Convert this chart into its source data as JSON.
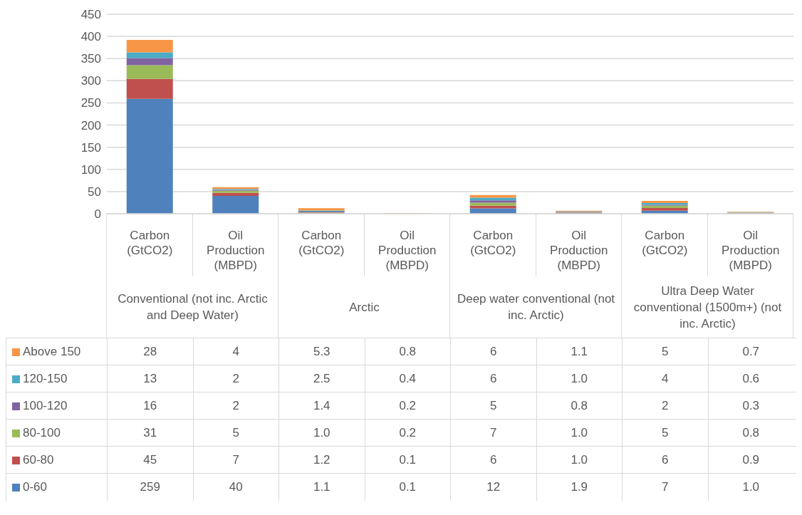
{
  "chart_data": {
    "type": "bar",
    "stacked": true,
    "categories": [
      "Carbon (GtCO2)",
      "Oil Production (MBPD)",
      "Carbon (GtCO2)",
      "Oil Production (MBPD)",
      "Carbon (GtCO2)",
      "Oil Production (MBPD)",
      "Carbon (GtCO2)",
      "Oil Production (MBPD)"
    ],
    "annotations": [
      "Conventional (not inc. Arctic and Deep Water)",
      "Arctic",
      "Deep water conventional (not inc. Arctic)",
      "Ultra Deep Water conventional (1500m+) (not inc. Arctic)"
    ],
    "series": [
      {
        "name": "0-60",
        "color": "#4f81bd",
        "values": [
          259,
          40,
          1.1,
          0.1,
          12,
          1.9,
          7,
          1.0
        ],
        "value_labels": [
          "259",
          "40",
          "1.1",
          "0.1",
          "12",
          "1.9",
          "7",
          "1.0"
        ]
      },
      {
        "name": "60-80",
        "color": "#c0504d",
        "values": [
          45,
          7,
          1.2,
          0.1,
          6,
          1.0,
          6,
          0.9
        ],
        "value_labels": [
          "45",
          "7",
          "1.2",
          "0.1",
          "6",
          "1.0",
          "6",
          "0.9"
        ]
      },
      {
        "name": "80-100",
        "color": "#9bbb59",
        "values": [
          31,
          5,
          1.0,
          0.2,
          7,
          1.0,
          5,
          0.8
        ],
        "value_labels": [
          "31",
          "5",
          "1.0",
          "0.2",
          "7",
          "1.0",
          "5",
          "0.8"
        ]
      },
      {
        "name": "100-120",
        "color": "#8064a2",
        "values": [
          16,
          2,
          1.4,
          0.2,
          5,
          0.8,
          2,
          0.3
        ],
        "value_labels": [
          "16",
          "2",
          "1.4",
          "0.2",
          "5",
          "0.8",
          "2",
          "0.3"
        ]
      },
      {
        "name": "120-150",
        "color": "#4bacc6",
        "values": [
          13,
          2,
          2.5,
          0.4,
          6,
          1.0,
          4,
          0.6
        ],
        "value_labels": [
          "13",
          "2",
          "2.5",
          "0.4",
          "6",
          "1.0",
          "4",
          "0.6"
        ]
      },
      {
        "name": "Above 150",
        "color": "#f79646",
        "values": [
          28,
          4,
          5.3,
          0.8,
          6,
          1.1,
          5,
          0.7
        ],
        "value_labels": [
          "28",
          "4",
          "5.3",
          "0.8",
          "6",
          "1.1",
          "5",
          "0.7"
        ]
      }
    ],
    "ylim": [
      0,
      450
    ],
    "yticks": [
      0,
      50,
      100,
      150,
      200,
      250,
      300,
      350,
      400,
      450
    ],
    "grid": "y",
    "legend": "bottom left"
  }
}
